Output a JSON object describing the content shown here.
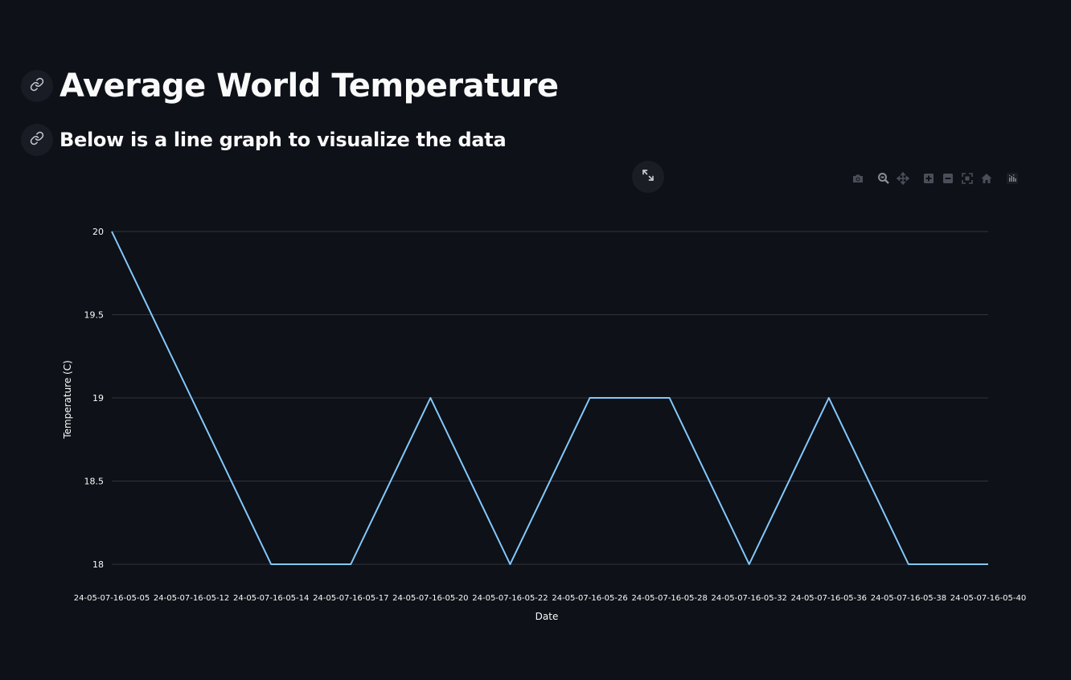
{
  "header": {
    "title": "Average World Temperature",
    "subtitle": "Below is a line graph to visualize the data"
  },
  "icons": {
    "title_anchor": "link-icon",
    "subtitle_anchor": "link-icon",
    "fullscreen": "expand-icon",
    "modebar": [
      "camera-icon",
      "zoom-icon",
      "pan-icon",
      "zoom-in-icon",
      "zoom-out-icon",
      "autoscale-icon",
      "reset-axes-icon",
      "plotly-logo-icon"
    ]
  },
  "colors": {
    "background": "#0e1117",
    "line": "#83c9ff",
    "grid": "#31333f",
    "text": "#fafafa"
  },
  "chart_data": {
    "type": "line",
    "xlabel": "Date",
    "ylabel": "Temperature (C)",
    "ylim": [
      18,
      20
    ],
    "yticks": [
      18,
      18.5,
      19,
      19.5,
      20
    ],
    "ytick_labels": [
      "18",
      "18.5",
      "19",
      "19.5",
      "20"
    ],
    "grid": true,
    "legend": "none",
    "x": [
      "24-05-07-16-05-05",
      "24-05-07-16-05-12",
      "24-05-07-16-05-14",
      "24-05-07-16-05-17",
      "24-05-07-16-05-20",
      "24-05-07-16-05-22",
      "24-05-07-16-05-26",
      "24-05-07-16-05-28",
      "24-05-07-16-05-32",
      "24-05-07-16-05-36",
      "24-05-07-16-05-38",
      "24-05-07-16-05-40"
    ],
    "series": [
      {
        "values": [
          20,
          19,
          18,
          18,
          19,
          18,
          19,
          19,
          18,
          19,
          18,
          18
        ]
      }
    ]
  }
}
